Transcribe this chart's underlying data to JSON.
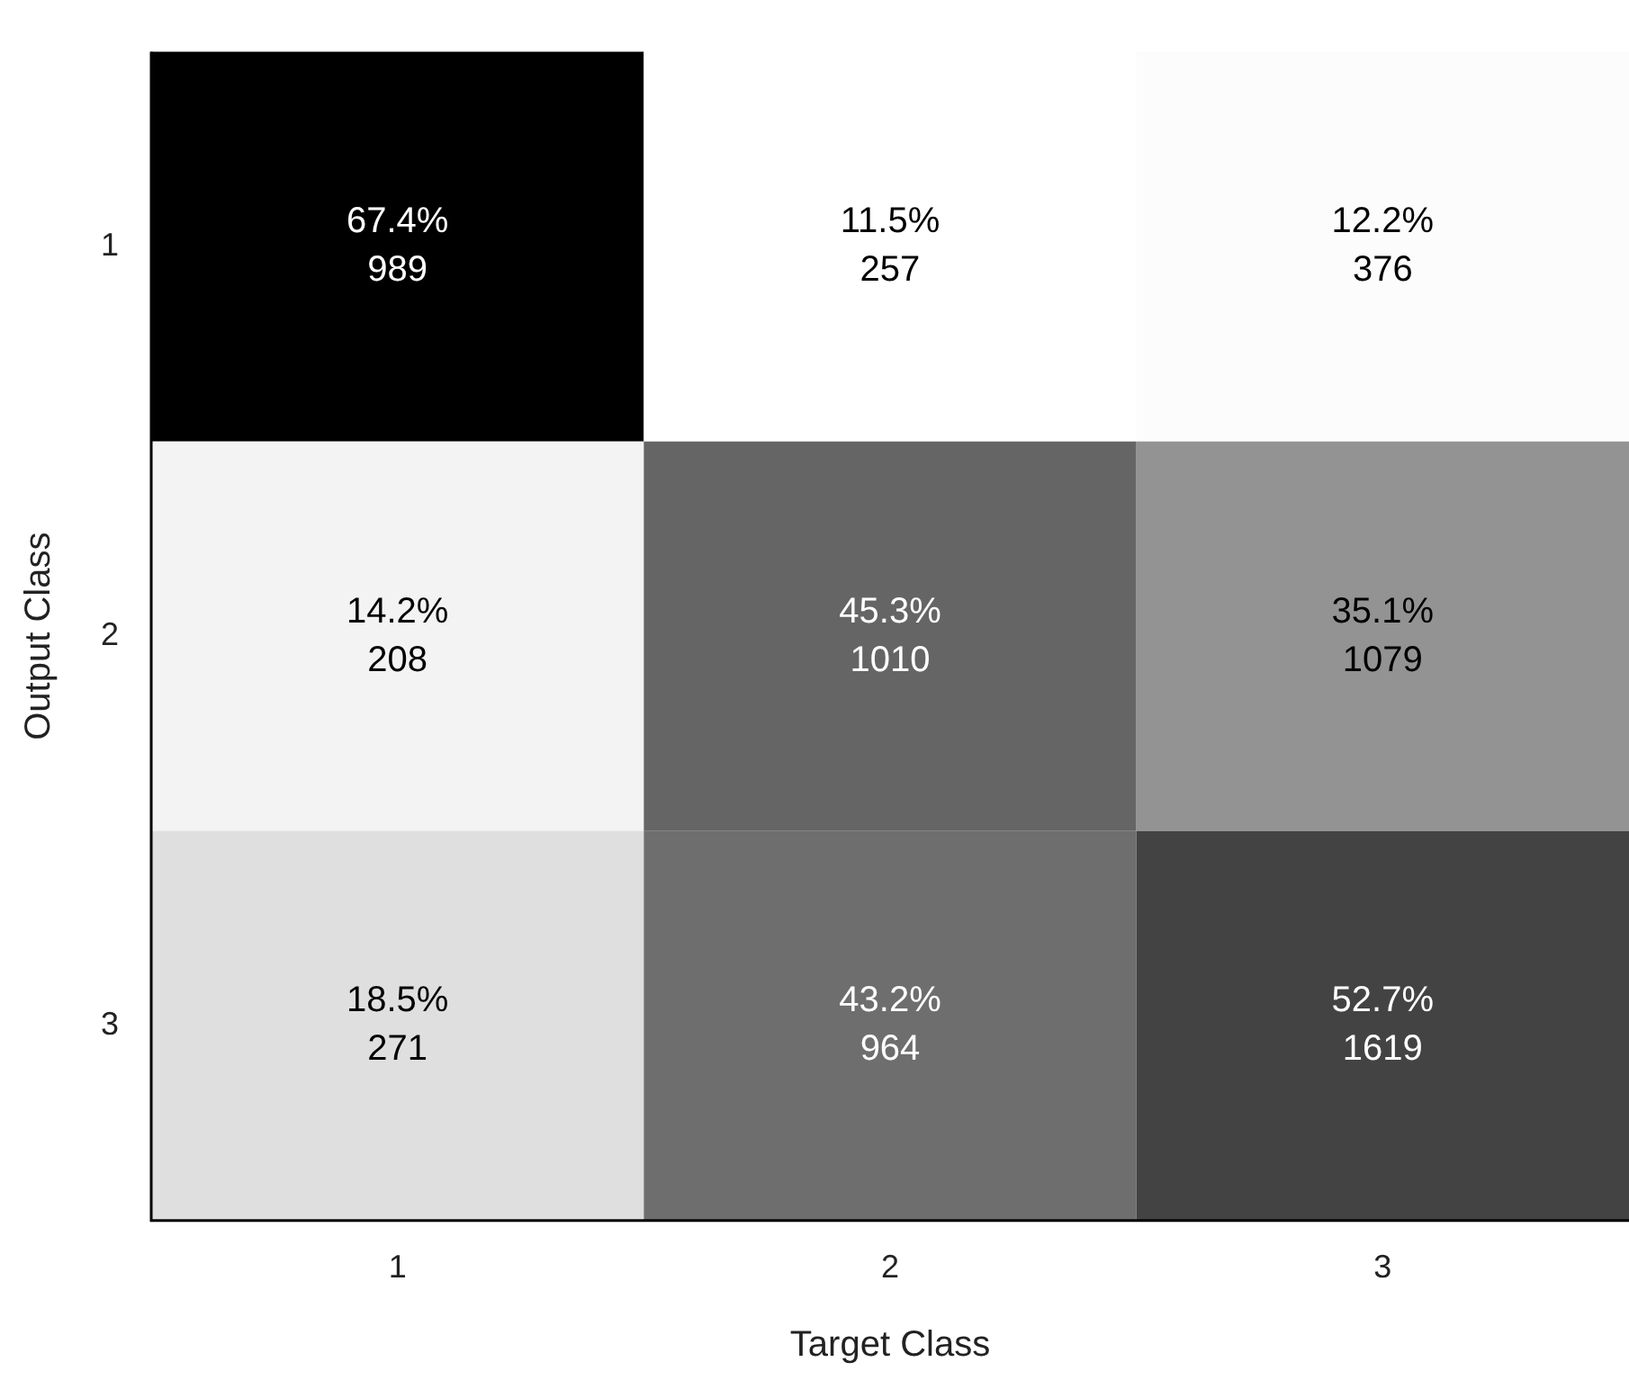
{
  "chart_data": {
    "type": "heatmap",
    "xlabel": "Target Class",
    "ylabel": "Output Class",
    "categories": [
      "1",
      "2",
      "3"
    ],
    "y_categories": [
      "1",
      "2",
      "3"
    ],
    "cells": [
      [
        67.4,
        11.5,
        12.2
      ],
      [
        14.2,
        45.3,
        35.1
      ],
      [
        18.5,
        43.2,
        52.7
      ]
    ],
    "cell_labels": [
      [
        "67.4%",
        "11.5%",
        "12.2%"
      ],
      [
        "14.2%",
        "45.3%",
        "35.1%"
      ],
      [
        "18.5%",
        "43.2%",
        "52.7%"
      ]
    ],
    "annotations": [
      "989",
      "257",
      "376",
      "208",
      "1010",
      "1079",
      "271",
      "964",
      "1619"
    ]
  }
}
